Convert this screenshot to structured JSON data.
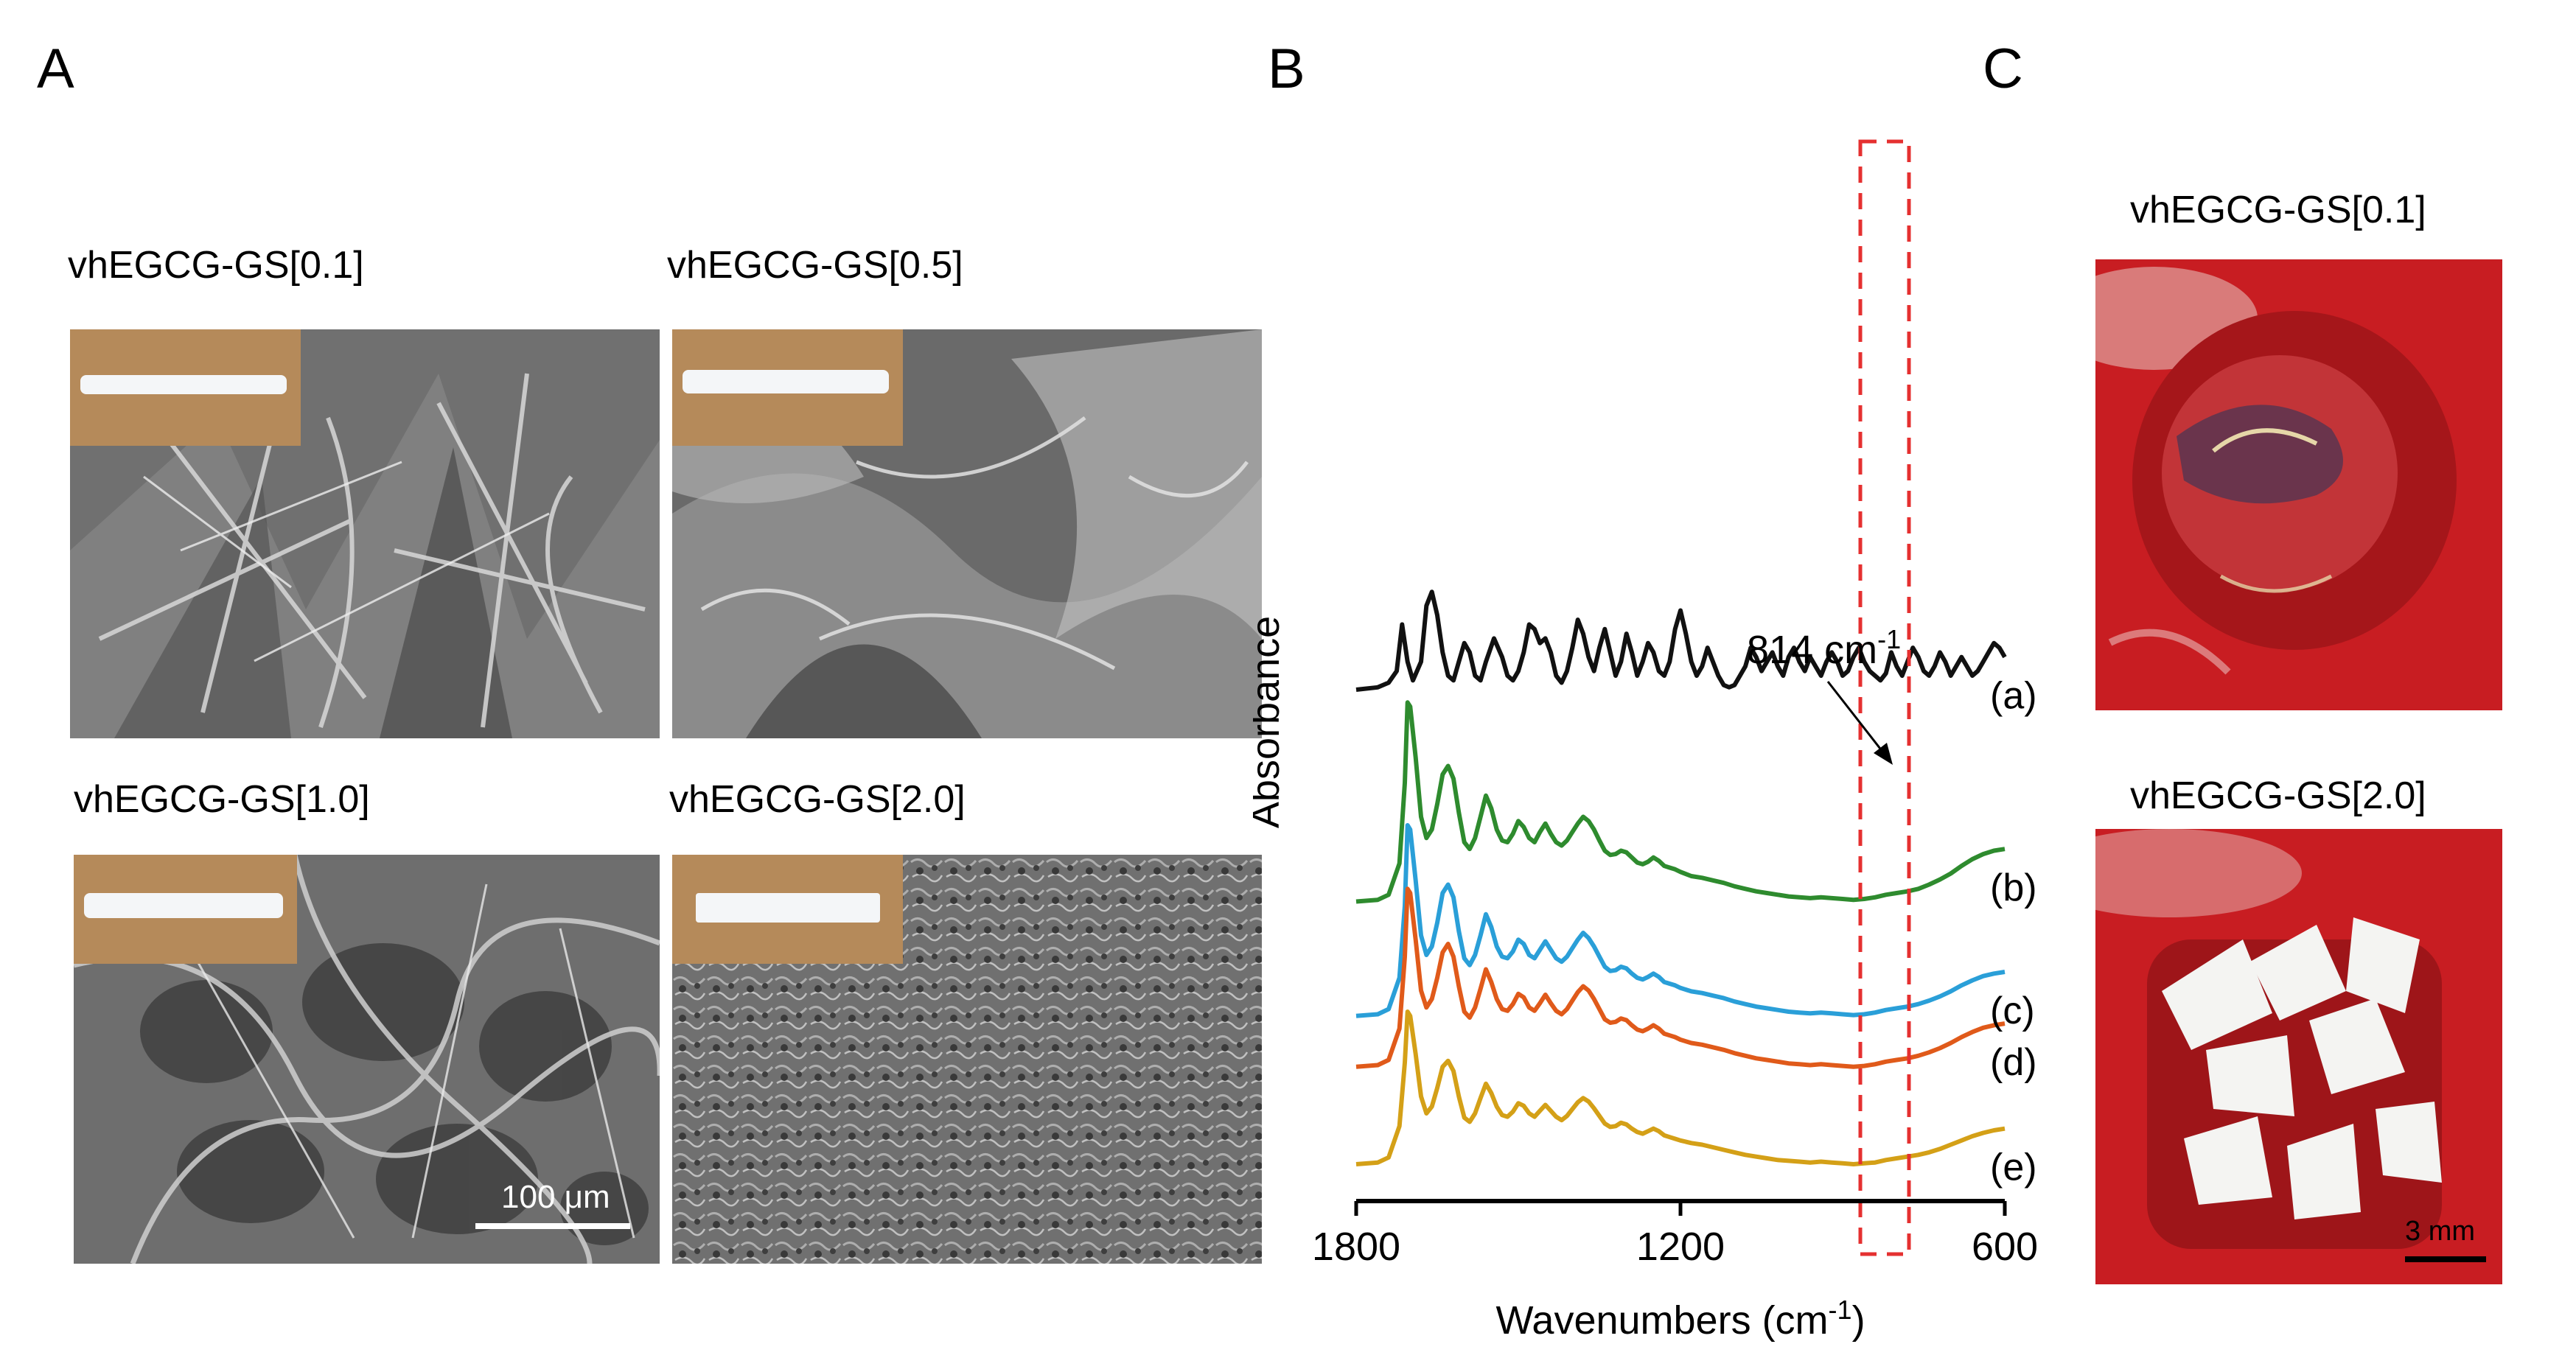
{
  "panels": {
    "A": {
      "letter": "A",
      "samples": [
        {
          "label": "vhEGCG-GS[0.1]"
        },
        {
          "label": "vhEGCG-GS[0.5]"
        },
        {
          "label": "vhEGCG-GS[1.0]"
        },
        {
          "label": "vhEGCG-GS[2.0]"
        }
      ],
      "scale_bar": "100 μm"
    },
    "B": {
      "letter": "B"
    },
    "C": {
      "letter": "C",
      "photos": [
        {
          "label": "vhEGCG-GS[0.1]"
        },
        {
          "label": "vhEGCG-GS[2.0]"
        }
      ],
      "scale_bar": "3 mm"
    }
  },
  "chart_data": {
    "type": "line",
    "title": "",
    "xlabel": "Wavenumbers (cm-1)",
    "ylabel": "Absorbance",
    "xlim": [
      1800,
      600
    ],
    "x_ticks": [
      "1800",
      "1200",
      "600"
    ],
    "x_tick_values": [
      1800,
      1200,
      600
    ],
    "annotation": {
      "text": "814 cm-1",
      "x": 814
    },
    "highlight_range": [
      780,
      880
    ],
    "series": [
      {
        "name": "(a)",
        "color": "#111111",
        "offset": 5.6,
        "scale": 0.55,
        "x": [
          1800,
          1760,
          1740,
          1725,
          1715,
          1705,
          1695,
          1680,
          1670,
          1660,
          1650,
          1640,
          1630,
          1620,
          1610,
          1600,
          1590,
          1580,
          1570,
          1560,
          1545,
          1530,
          1520,
          1510,
          1500,
          1490,
          1480,
          1470,
          1460,
          1450,
          1440,
          1430,
          1420,
          1410,
          1400,
          1390,
          1380,
          1370,
          1360,
          1350,
          1340,
          1330,
          1320,
          1310,
          1300,
          1290,
          1280,
          1270,
          1260,
          1250,
          1240,
          1230,
          1220,
          1210,
          1200,
          1190,
          1180,
          1170,
          1160,
          1150,
          1140,
          1130,
          1120,
          1110,
          1100,
          1090,
          1080,
          1070,
          1060,
          1050,
          1040,
          1030,
          1020,
          1010,
          1000,
          990,
          980,
          970,
          960,
          950,
          940,
          930,
          920,
          910,
          900,
          890,
          880,
          870,
          860,
          850,
          840,
          830,
          820,
          810,
          800,
          790,
          780,
          770,
          760,
          750,
          740,
          730,
          720,
          710,
          700,
          690,
          680,
          670,
          660,
          650,
          640,
          630,
          620,
          610,
          600
        ],
        "y": [
          0.0,
          0.05,
          0.15,
          0.4,
          1.4,
          0.6,
          0.2,
          0.6,
          1.8,
          2.1,
          1.6,
          0.8,
          0.3,
          0.2,
          0.6,
          1.0,
          0.8,
          0.3,
          0.2,
          0.6,
          1.1,
          0.7,
          0.3,
          0.2,
          0.4,
          0.8,
          1.4,
          1.3,
          1.0,
          1.1,
          0.8,
          0.3,
          0.15,
          0.4,
          0.9,
          1.5,
          1.2,
          0.7,
          0.4,
          0.9,
          1.3,
          0.8,
          0.3,
          0.6,
          1.2,
          0.8,
          0.3,
          0.6,
          1.0,
          0.8,
          0.4,
          0.3,
          0.6,
          1.3,
          1.7,
          1.2,
          0.6,
          0.3,
          0.5,
          0.9,
          0.6,
          0.3,
          0.1,
          0.05,
          0.1,
          0.3,
          0.5,
          0.9,
          0.7,
          0.4,
          0.6,
          0.8,
          0.5,
          0.3,
          0.7,
          0.9,
          0.6,
          0.4,
          0.7,
          0.5,
          0.3,
          0.6,
          0.8,
          0.6,
          0.3,
          0.4,
          0.7,
          0.9,
          0.6,
          0.4,
          0.3,
          0.2,
          0.35,
          0.8,
          0.5,
          0.3,
          0.6,
          0.9,
          0.7,
          0.4,
          0.3,
          0.5,
          0.8,
          0.6,
          0.3,
          0.5,
          0.7,
          0.5,
          0.3,
          0.4,
          0.6,
          0.8,
          1.0,
          0.9,
          0.7
        ]
      },
      {
        "name": "(b)",
        "color": "#2e8b2e",
        "offset": 3.1,
        "scale": 1.0,
        "x": [
          1800,
          1760,
          1740,
          1720,
          1710,
          1705,
          1700,
          1690,
          1680,
          1670,
          1660,
          1650,
          1640,
          1630,
          1620,
          1610,
          1600,
          1590,
          1580,
          1570,
          1560,
          1550,
          1540,
          1530,
          1520,
          1510,
          1500,
          1490,
          1480,
          1470,
          1460,
          1450,
          1440,
          1430,
          1420,
          1410,
          1400,
          1390,
          1380,
          1370,
          1360,
          1350,
          1340,
          1330,
          1320,
          1310,
          1300,
          1290,
          1280,
          1270,
          1260,
          1250,
          1240,
          1230,
          1220,
          1210,
          1200,
          1180,
          1160,
          1140,
          1120,
          1100,
          1080,
          1060,
          1040,
          1020,
          1000,
          980,
          960,
          940,
          920,
          900,
          880,
          860,
          840,
          820,
          800,
          780,
          760,
          740,
          720,
          700,
          680,
          660,
          640,
          620,
          600
        ],
        "y": [
          0.0,
          0.02,
          0.08,
          0.45,
          1.4,
          2.35,
          2.3,
          1.7,
          1.0,
          0.75,
          0.85,
          1.15,
          1.5,
          1.6,
          1.45,
          1.05,
          0.7,
          0.62,
          0.75,
          1.0,
          1.25,
          1.1,
          0.85,
          0.72,
          0.7,
          0.8,
          0.95,
          0.88,
          0.75,
          0.7,
          0.82,
          0.92,
          0.8,
          0.7,
          0.66,
          0.72,
          0.82,
          0.92,
          1.0,
          0.95,
          0.85,
          0.72,
          0.6,
          0.55,
          0.56,
          0.6,
          0.58,
          0.52,
          0.46,
          0.44,
          0.47,
          0.52,
          0.48,
          0.42,
          0.4,
          0.38,
          0.35,
          0.3,
          0.28,
          0.25,
          0.22,
          0.18,
          0.15,
          0.12,
          0.1,
          0.08,
          0.06,
          0.05,
          0.04,
          0.05,
          0.04,
          0.03,
          0.02,
          0.03,
          0.05,
          0.08,
          0.1,
          0.12,
          0.15,
          0.2,
          0.26,
          0.33,
          0.42,
          0.5,
          0.56,
          0.6,
          0.62
        ]
      },
      {
        "name": "(c)",
        "color": "#2a9fd8",
        "offset": 1.75,
        "scale": 1.0,
        "x": [
          1800,
          1760,
          1740,
          1720,
          1710,
          1705,
          1700,
          1690,
          1680,
          1670,
          1660,
          1650,
          1640,
          1630,
          1620,
          1610,
          1600,
          1590,
          1580,
          1570,
          1560,
          1550,
          1540,
          1530,
          1520,
          1510,
          1500,
          1490,
          1480,
          1470,
          1460,
          1450,
          1440,
          1430,
          1420,
          1410,
          1400,
          1390,
          1380,
          1370,
          1360,
          1350,
          1340,
          1330,
          1320,
          1310,
          1300,
          1290,
          1280,
          1270,
          1260,
          1250,
          1240,
          1230,
          1220,
          1210,
          1200,
          1180,
          1160,
          1140,
          1120,
          1100,
          1080,
          1060,
          1040,
          1020,
          1000,
          980,
          960,
          940,
          920,
          900,
          880,
          860,
          840,
          820,
          800,
          780,
          760,
          740,
          720,
          700,
          680,
          660,
          640,
          620,
          600
        ],
        "y": [
          0.0,
          0.02,
          0.08,
          0.45,
          1.3,
          2.25,
          2.2,
          1.6,
          0.95,
          0.72,
          0.82,
          1.1,
          1.45,
          1.55,
          1.4,
          1.0,
          0.68,
          0.6,
          0.72,
          0.95,
          1.2,
          1.05,
          0.82,
          0.7,
          0.68,
          0.76,
          0.9,
          0.85,
          0.72,
          0.68,
          0.78,
          0.88,
          0.78,
          0.68,
          0.64,
          0.7,
          0.8,
          0.9,
          0.98,
          0.92,
          0.82,
          0.7,
          0.58,
          0.53,
          0.54,
          0.58,
          0.56,
          0.5,
          0.45,
          0.43,
          0.46,
          0.5,
          0.46,
          0.4,
          0.38,
          0.36,
          0.33,
          0.29,
          0.27,
          0.24,
          0.21,
          0.17,
          0.14,
          0.11,
          0.09,
          0.07,
          0.05,
          0.04,
          0.03,
          0.04,
          0.03,
          0.02,
          0.01,
          0.02,
          0.04,
          0.07,
          0.09,
          0.11,
          0.14,
          0.18,
          0.23,
          0.29,
          0.36,
          0.42,
          0.47,
          0.5,
          0.52
        ]
      },
      {
        "name": "(d)",
        "color": "#e05a1a",
        "offset": 1.15,
        "scale": 1.0,
        "x": [
          1800,
          1760,
          1740,
          1720,
          1710,
          1705,
          1700,
          1690,
          1680,
          1670,
          1660,
          1650,
          1640,
          1630,
          1620,
          1610,
          1600,
          1590,
          1580,
          1570,
          1560,
          1550,
          1540,
          1530,
          1520,
          1510,
          1500,
          1490,
          1480,
          1470,
          1460,
          1450,
          1440,
          1430,
          1420,
          1410,
          1400,
          1390,
          1380,
          1370,
          1360,
          1350,
          1340,
          1330,
          1320,
          1310,
          1300,
          1290,
          1280,
          1270,
          1260,
          1250,
          1240,
          1230,
          1220,
          1210,
          1200,
          1180,
          1160,
          1140,
          1120,
          1100,
          1080,
          1060,
          1040,
          1020,
          1000,
          980,
          960,
          940,
          920,
          900,
          880,
          860,
          840,
          820,
          800,
          780,
          760,
          740,
          720,
          700,
          680,
          660,
          640,
          620,
          600
        ],
        "y": [
          0.0,
          0.02,
          0.08,
          0.45,
          1.3,
          2.1,
          2.05,
          1.5,
          0.9,
          0.7,
          0.8,
          1.05,
          1.35,
          1.45,
          1.3,
          0.95,
          0.65,
          0.58,
          0.7,
          0.92,
          1.15,
          1.0,
          0.8,
          0.68,
          0.66,
          0.74,
          0.86,
          0.82,
          0.7,
          0.66,
          0.75,
          0.85,
          0.75,
          0.66,
          0.62,
          0.68,
          0.78,
          0.88,
          0.95,
          0.9,
          0.8,
          0.68,
          0.56,
          0.52,
          0.53,
          0.57,
          0.55,
          0.49,
          0.44,
          0.42,
          0.45,
          0.49,
          0.45,
          0.39,
          0.37,
          0.35,
          0.32,
          0.28,
          0.26,
          0.23,
          0.2,
          0.16,
          0.13,
          0.1,
          0.08,
          0.06,
          0.04,
          0.03,
          0.02,
          0.03,
          0.02,
          0.01,
          0.0,
          0.01,
          0.03,
          0.06,
          0.08,
          0.1,
          0.13,
          0.17,
          0.22,
          0.28,
          0.35,
          0.41,
          0.46,
          0.49,
          0.51
        ]
      },
      {
        "name": "(e)",
        "color": "#d4a017",
        "offset": 0.0,
        "scale": 1.0,
        "x": [
          1800,
          1760,
          1740,
          1720,
          1710,
          1705,
          1700,
          1690,
          1680,
          1670,
          1660,
          1650,
          1640,
          1630,
          1620,
          1610,
          1600,
          1590,
          1580,
          1570,
          1560,
          1550,
          1540,
          1530,
          1520,
          1510,
          1500,
          1490,
          1480,
          1470,
          1460,
          1450,
          1440,
          1430,
          1420,
          1410,
          1400,
          1390,
          1380,
          1370,
          1360,
          1350,
          1340,
          1330,
          1320,
          1310,
          1300,
          1290,
          1280,
          1270,
          1260,
          1250,
          1240,
          1230,
          1220,
          1210,
          1200,
          1180,
          1160,
          1140,
          1120,
          1100,
          1080,
          1060,
          1040,
          1020,
          1000,
          980,
          960,
          940,
          920,
          900,
          880,
          860,
          840,
          820,
          800,
          780,
          760,
          740,
          720,
          700,
          680,
          660,
          640,
          620,
          600
        ],
        "y": [
          0.0,
          0.02,
          0.08,
          0.45,
          1.2,
          1.8,
          1.75,
          1.3,
          0.8,
          0.6,
          0.68,
          0.9,
          1.15,
          1.22,
          1.1,
          0.8,
          0.55,
          0.5,
          0.6,
          0.78,
          0.95,
          0.84,
          0.68,
          0.58,
          0.56,
          0.62,
          0.72,
          0.69,
          0.6,
          0.56,
          0.63,
          0.7,
          0.63,
          0.56,
          0.52,
          0.57,
          0.65,
          0.73,
          0.78,
          0.74,
          0.66,
          0.57,
          0.48,
          0.44,
          0.45,
          0.49,
          0.47,
          0.42,
          0.38,
          0.36,
          0.39,
          0.42,
          0.39,
          0.34,
          0.32,
          0.3,
          0.28,
          0.25,
          0.23,
          0.2,
          0.17,
          0.14,
          0.11,
          0.09,
          0.07,
          0.05,
          0.04,
          0.03,
          0.02,
          0.03,
          0.02,
          0.01,
          0.0,
          0.01,
          0.02,
          0.05,
          0.07,
          0.09,
          0.11,
          0.14,
          0.18,
          0.23,
          0.28,
          0.33,
          0.37,
          0.4,
          0.42
        ]
      }
    ]
  }
}
